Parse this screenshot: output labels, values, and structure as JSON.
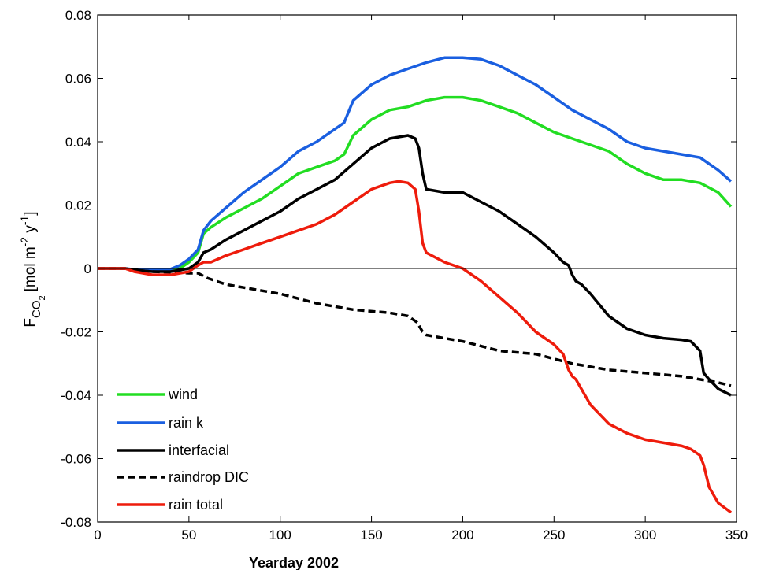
{
  "chart_data": {
    "type": "line",
    "title": "",
    "xlabel": "Yearday 2002",
    "ylabel": {
      "base": "F",
      "sub": "CO",
      "subsub": "2",
      "units_pre": "[mol m",
      "units_exp1": "-2",
      "units_mid": " y",
      "units_exp2": "-1",
      "units_post": "]"
    },
    "xlim": [
      0,
      350
    ],
    "ylim": [
      -0.08,
      0.08
    ],
    "xticks": [
      0,
      50,
      100,
      150,
      200,
      250,
      300,
      350
    ],
    "xtick_labels": [
      "0",
      "50",
      "100",
      "150",
      "200",
      "250",
      "300",
      "350"
    ],
    "yticks": [
      -0.08,
      -0.06,
      -0.04,
      -0.02,
      0,
      0.02,
      0.04,
      0.06,
      0.08
    ],
    "ytick_labels": [
      "-0.08",
      "-0.06",
      "-0.04",
      "-0.02",
      "0",
      "0.02",
      "0.04",
      "0.06",
      "0.08"
    ],
    "grid": false,
    "zero_line": true,
    "legend_position": "bottom-left",
    "series": [
      {
        "name": "wind",
        "color": "#22dd22",
        "dash": "solid",
        "x": [
          0,
          15,
          20,
          30,
          40,
          45,
          50,
          55,
          58,
          62,
          70,
          80,
          90,
          100,
          110,
          120,
          130,
          135,
          140,
          150,
          160,
          170,
          180,
          190,
          200,
          210,
          220,
          230,
          240,
          250,
          260,
          270,
          280,
          290,
          300,
          310,
          320,
          330,
          340,
          347
        ],
        "y": [
          0,
          0,
          -0.0005,
          -0.0008,
          -0.0005,
          0,
          0.002,
          0.005,
          0.011,
          0.013,
          0.016,
          0.019,
          0.022,
          0.026,
          0.03,
          0.032,
          0.034,
          0.036,
          0.042,
          0.047,
          0.05,
          0.051,
          0.053,
          0.054,
          0.054,
          0.053,
          0.051,
          0.049,
          0.046,
          0.043,
          0.041,
          0.039,
          0.037,
          0.033,
          0.03,
          0.028,
          0.028,
          0.027,
          0.024,
          0.0195
        ]
      },
      {
        "name": "rain k",
        "color": "#1a5fe0",
        "dash": "solid",
        "x": [
          0,
          15,
          20,
          30,
          40,
          45,
          50,
          55,
          58,
          62,
          70,
          80,
          90,
          100,
          110,
          120,
          130,
          135,
          140,
          150,
          160,
          170,
          180,
          190,
          200,
          210,
          220,
          230,
          240,
          250,
          260,
          270,
          280,
          290,
          300,
          310,
          320,
          330,
          340,
          347
        ],
        "y": [
          0,
          0,
          -0.0003,
          -0.0005,
          -0.0002,
          0.001,
          0.003,
          0.006,
          0.012,
          0.015,
          0.019,
          0.024,
          0.028,
          0.032,
          0.037,
          0.04,
          0.044,
          0.046,
          0.053,
          0.058,
          0.061,
          0.063,
          0.065,
          0.0665,
          0.0665,
          0.066,
          0.064,
          0.061,
          0.058,
          0.054,
          0.05,
          0.047,
          0.044,
          0.04,
          0.038,
          0.037,
          0.036,
          0.035,
          0.031,
          0.0275
        ]
      },
      {
        "name": "interfacial",
        "color": "#000000",
        "dash": "solid",
        "x": [
          0,
          15,
          20,
          30,
          40,
          50,
          55,
          58,
          62,
          70,
          80,
          90,
          100,
          110,
          120,
          130,
          140,
          150,
          160,
          165,
          170,
          174,
          176,
          178,
          180,
          190,
          200,
          210,
          220,
          230,
          240,
          250,
          255,
          258,
          260,
          262,
          265,
          270,
          280,
          290,
          300,
          310,
          320,
          325,
          330,
          332,
          335,
          340,
          347
        ],
        "y": [
          0,
          0,
          -0.0005,
          -0.001,
          -0.001,
          0,
          0.002,
          0.005,
          0.006,
          0.009,
          0.012,
          0.015,
          0.018,
          0.022,
          0.025,
          0.028,
          0.033,
          0.038,
          0.041,
          0.0415,
          0.042,
          0.041,
          0.038,
          0.03,
          0.025,
          0.024,
          0.024,
          0.021,
          0.018,
          0.014,
          0.01,
          0.005,
          0.002,
          0.001,
          -0.002,
          -0.004,
          -0.005,
          -0.008,
          -0.015,
          -0.019,
          -0.021,
          -0.022,
          -0.0225,
          -0.023,
          -0.026,
          -0.033,
          -0.035,
          -0.038,
          -0.04
        ]
      },
      {
        "name": "raindrop DIC",
        "color": "#000000",
        "dash": "dashed",
        "x": [
          0,
          15,
          20,
          30,
          40,
          50,
          55,
          60,
          70,
          80,
          100,
          120,
          140,
          160,
          170,
          175,
          178,
          180,
          190,
          200,
          220,
          240,
          260,
          280,
          300,
          320,
          330,
          340,
          347
        ],
        "y": [
          0,
          0,
          -0.0005,
          -0.001,
          -0.0012,
          -0.0015,
          -0.0015,
          -0.003,
          -0.005,
          -0.006,
          -0.008,
          -0.011,
          -0.013,
          -0.014,
          -0.015,
          -0.017,
          -0.02,
          -0.021,
          -0.022,
          -0.023,
          -0.026,
          -0.027,
          -0.03,
          -0.032,
          -0.033,
          -0.034,
          -0.035,
          -0.036,
          -0.037
        ]
      },
      {
        "name": "rain total",
        "color": "#ee1c0c",
        "dash": "solid",
        "x": [
          0,
          15,
          20,
          30,
          40,
          50,
          55,
          58,
          62,
          70,
          80,
          90,
          100,
          110,
          120,
          130,
          140,
          150,
          160,
          165,
          170,
          174,
          176,
          178,
          180,
          190,
          200,
          210,
          220,
          230,
          240,
          250,
          255,
          258,
          260,
          262,
          265,
          270,
          280,
          290,
          300,
          310,
          320,
          325,
          330,
          332,
          335,
          340,
          347
        ],
        "y": [
          0,
          0,
          -0.001,
          -0.002,
          -0.002,
          -0.001,
          0.001,
          0.002,
          0.002,
          0.004,
          0.006,
          0.008,
          0.01,
          0.012,
          0.014,
          0.017,
          0.021,
          0.025,
          0.027,
          0.0275,
          0.027,
          0.025,
          0.018,
          0.008,
          0.005,
          0.002,
          0.0,
          -0.004,
          -0.009,
          -0.014,
          -0.02,
          -0.024,
          -0.027,
          -0.032,
          -0.034,
          -0.035,
          -0.038,
          -0.043,
          -0.049,
          -0.052,
          -0.054,
          -0.055,
          -0.056,
          -0.057,
          -0.059,
          -0.062,
          -0.069,
          -0.074,
          -0.077
        ]
      }
    ]
  }
}
